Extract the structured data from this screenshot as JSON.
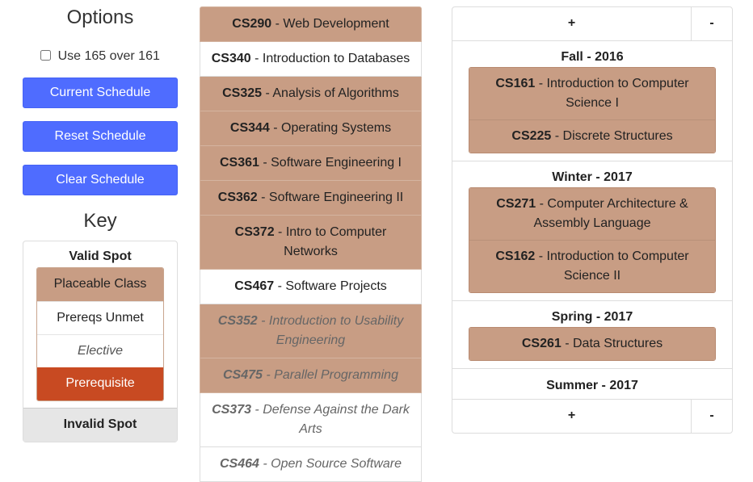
{
  "options": {
    "title": "Options",
    "use165_label": "Use 165 over 161",
    "buttons": {
      "current": "Current Schedule",
      "reset": "Reset Schedule",
      "clear": "Clear Schedule"
    }
  },
  "key": {
    "title": "Key",
    "valid_spot": "Valid Spot",
    "placeable": "Placeable Class",
    "prereqs_unmet": "Prereqs Unmet",
    "elective": "Elective",
    "prerequisite": "Prerequisite",
    "invalid_spot": "Invalid Spot"
  },
  "classes": [
    {
      "code": "CS290",
      "name": " - Web Development"
    },
    {
      "code": "CS340",
      "name": " - Introduction to Databases"
    },
    {
      "code": "CS325",
      "name": " - Analysis of Algorithms"
    },
    {
      "code": "CS344",
      "name": " - Operating Systems"
    },
    {
      "code": "CS361",
      "name": " - Software Engineering I"
    },
    {
      "code": "CS362",
      "name": " - Software Engineering II"
    },
    {
      "code": "CS372",
      "name": " - Intro to Computer Networks"
    },
    {
      "code": "CS467",
      "name": " - Software Projects"
    },
    {
      "code": "CS352",
      "name": " - Introduction to Usability Engineering"
    },
    {
      "code": "CS475",
      "name": " - Parallel Programming"
    },
    {
      "code": "CS373",
      "name": " - Defense Against the Dark Arts"
    },
    {
      "code": "CS464",
      "name": " - Open Source Software"
    }
  ],
  "schedule": {
    "plus": "+",
    "minus": "-",
    "terms": [
      {
        "title": "Fall - 2016",
        "classes": [
          {
            "code": "CS161",
            "name": " - Introduction to Computer Science I"
          },
          {
            "code": "CS225",
            "name": " - Discrete Structures"
          }
        ]
      },
      {
        "title": "Winter - 2017",
        "classes": [
          {
            "code": "CS271",
            "name": " - Computer Architecture & Assembly Language"
          },
          {
            "code": "CS162",
            "name": " - Introduction to Computer Science II"
          }
        ]
      },
      {
        "title": "Spring - 2017",
        "classes": [
          {
            "code": "CS261",
            "name": " - Data Structures"
          }
        ]
      },
      {
        "title": "Summer - 2017",
        "classes": []
      }
    ]
  }
}
